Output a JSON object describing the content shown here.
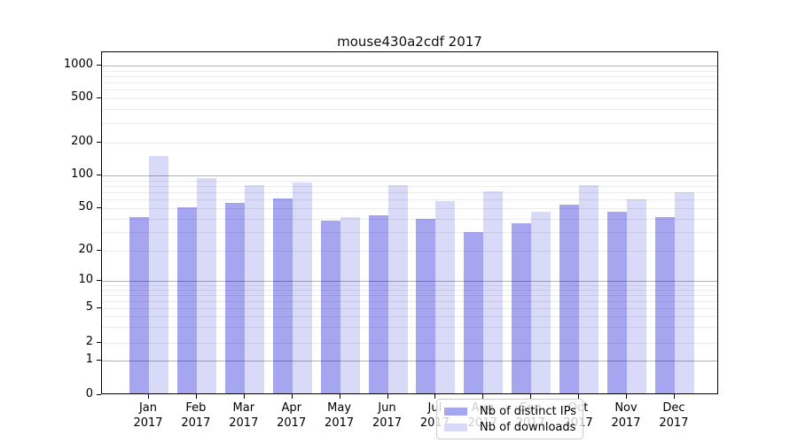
{
  "title": "mouse430a2cdf 2017",
  "colors": {
    "distinct_ips": "#a5a5f0",
    "downloads": "#d9d9f8",
    "grid_major": "rgba(0,0,0,0.30)",
    "grid_minor": "rgba(0,0,0,0.075)",
    "spine": "#000000",
    "legend_border": "#cccccc",
    "legend_background": "rgba(255,255,255,0.8)"
  },
  "chart_data": {
    "type": "bar",
    "title": "mouse430a2cdf 2017",
    "categories": [
      "Jan 2017",
      "Feb 2017",
      "Mar 2017",
      "Apr 2017",
      "May 2017",
      "Jun 2017",
      "Jul 2017",
      "Aug 2017",
      "Sep 2017",
      "Oct 2017",
      "Nov 2017",
      "Dec 2017"
    ],
    "x_tick_months": [
      "Jan",
      "Feb",
      "Mar",
      "Apr",
      "May",
      "Jun",
      "Jul",
      "Aug",
      "Sep",
      "Oct",
      "Nov",
      "Dec"
    ],
    "x_tick_year": "2017",
    "series": [
      {
        "name": "Nb of distinct IPs",
        "color": "#a5a5f0",
        "values": [
          40,
          49,
          54,
          59,
          37,
          41,
          38,
          29,
          35,
          52,
          45,
          40
        ]
      },
      {
        "name": "Nb of downloads",
        "color": "#d9d9f8",
        "values": [
          145,
          91,
          78,
          83,
          40,
          78,
          56,
          69,
          45,
          78,
          58,
          67
        ]
      }
    ],
    "y_ticks": [
      0,
      1,
      2,
      5,
      10,
      20,
      50,
      100,
      200,
      500,
      1000
    ],
    "y_scale": "symlog (log above 1, linear 0-1)",
    "ylim": [
      0,
      1000
    ],
    "grid": "horizontal, major at powers of 10 (darker), minor at 2-9 per decade (light), drawn over bars",
    "legend_position": "bottom-center inside plot",
    "xlabel": "",
    "ylabel": ""
  }
}
